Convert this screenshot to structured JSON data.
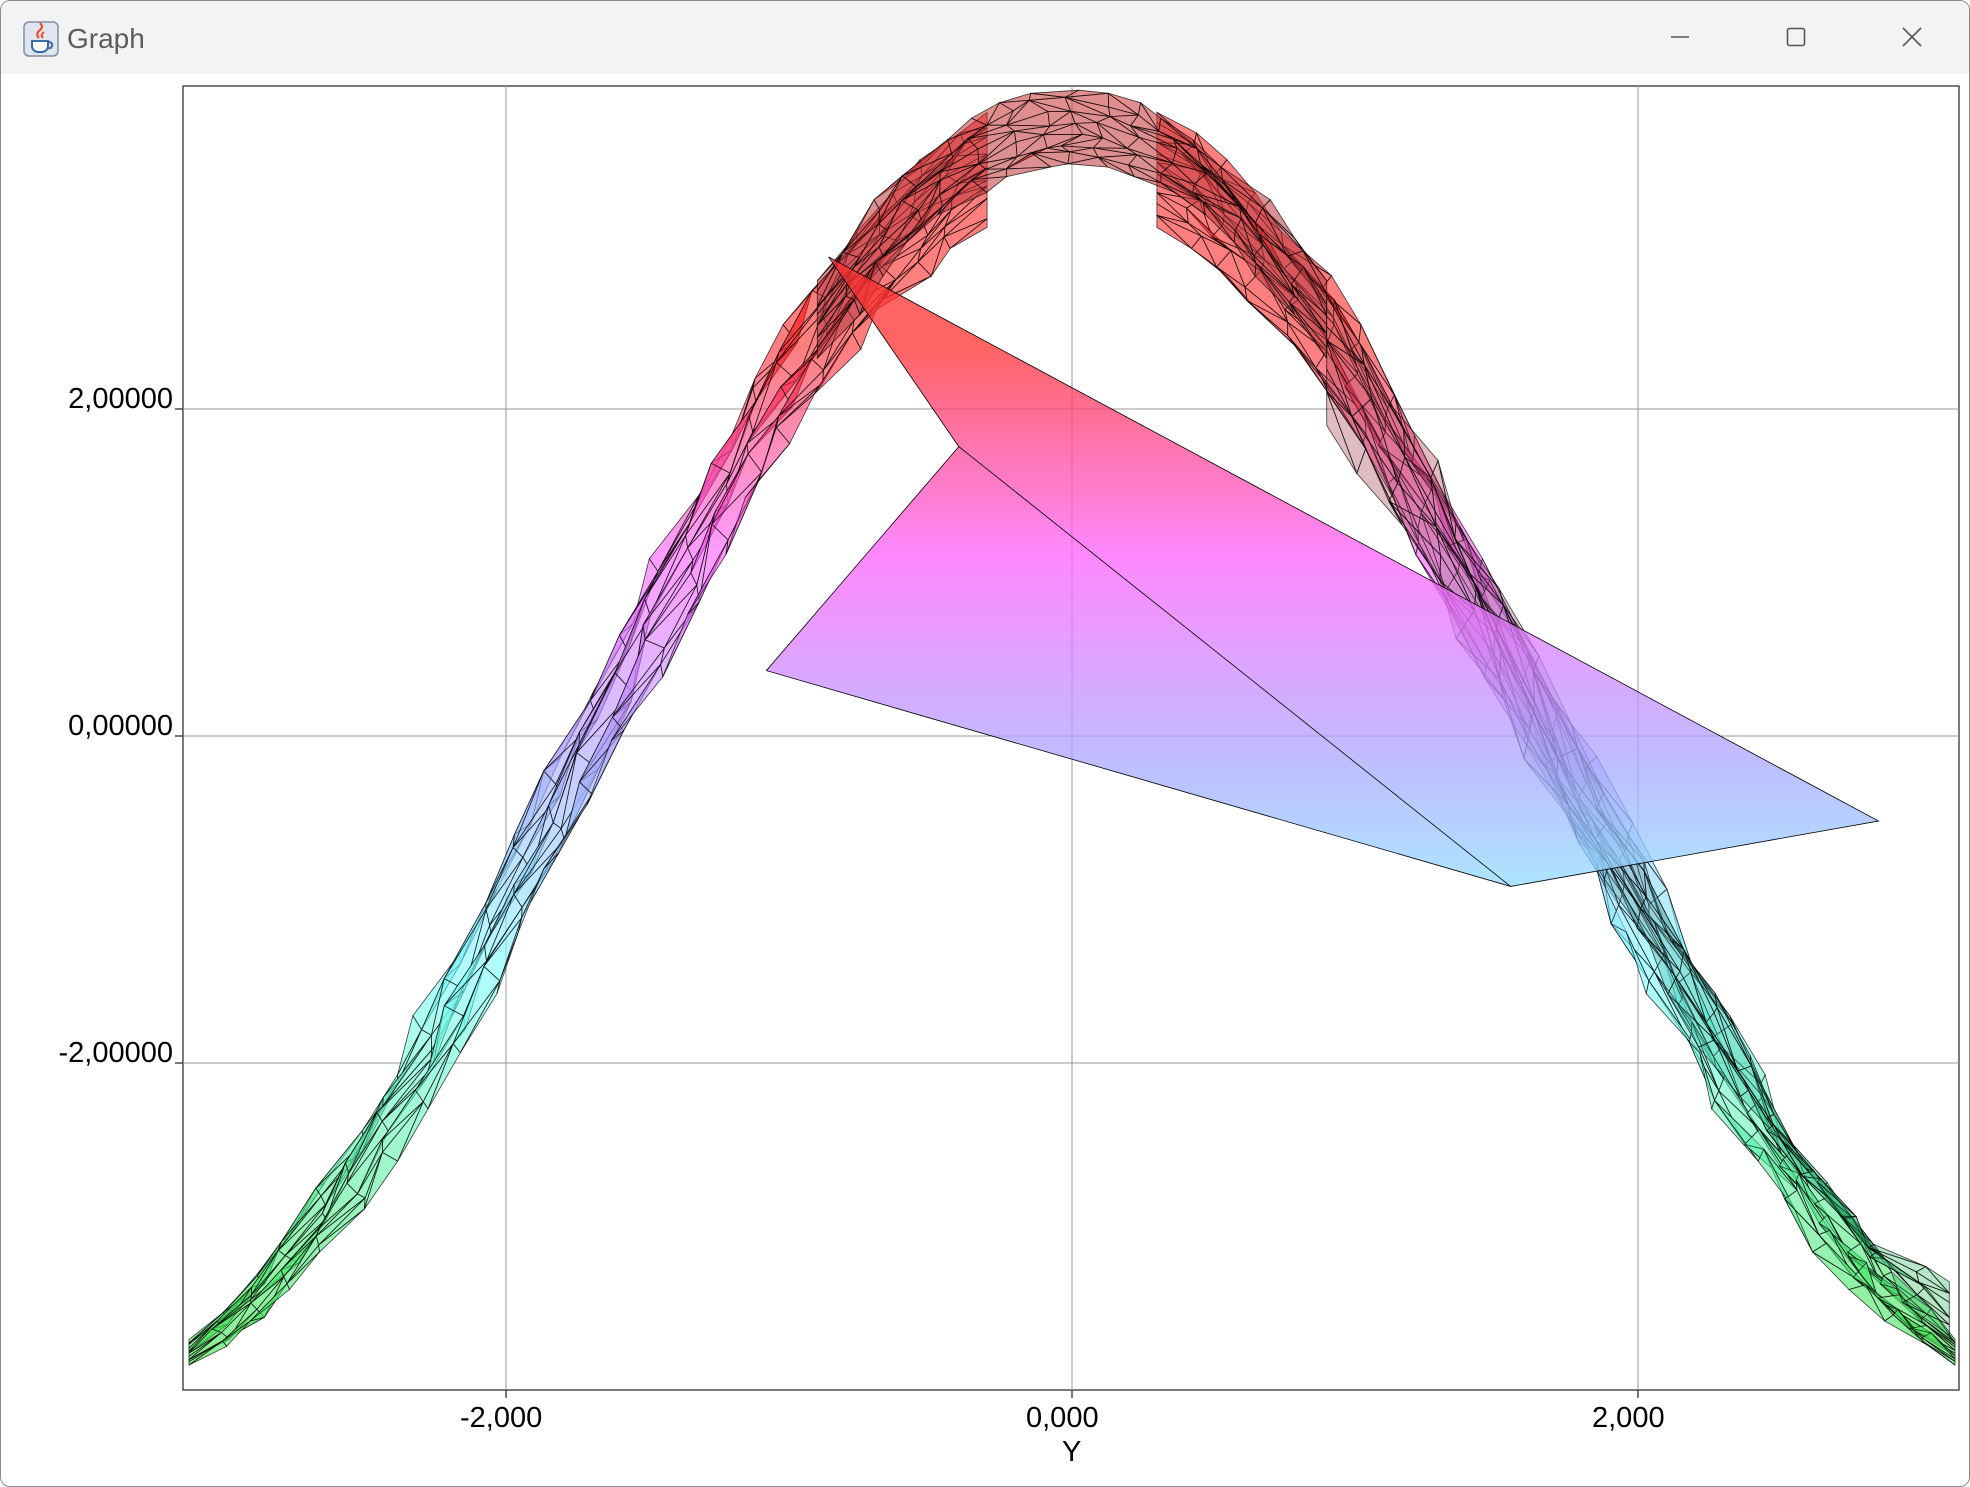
{
  "window": {
    "title": "Graph",
    "icon": "java-cup-icon",
    "controls": [
      "minimize-icon",
      "maximize-icon",
      "close-icon"
    ]
  },
  "chart_data": {
    "type": "surface",
    "title": "",
    "xlabel": "Y",
    "ylabel": "",
    "x_ticks": [
      "-2,000",
      "0,000",
      "2,000"
    ],
    "y_ticks": [
      "2,00000",
      "0,00000",
      "-2,00000"
    ],
    "xlim": [
      -3.141,
      3.141
    ],
    "ylim": [
      -4.0,
      4.0
    ],
    "grid": true,
    "surface": "semi-transparent triangulated mesh with height colour gradient: red top, magenta, violet, cyan, green bottom",
    "colors": {
      "top": "#ff3030",
      "upper": "#ff60ff",
      "middle": "#a8a8ff",
      "lower": "#80ffff",
      "bottom": "#40e040"
    }
  }
}
